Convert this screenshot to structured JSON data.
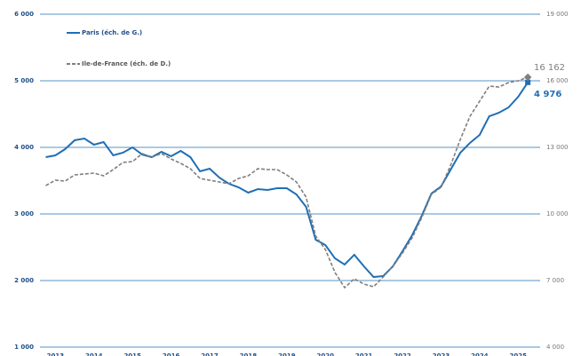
{
  "chart_data": {
    "type": "line",
    "x": [
      2012.75,
      2013,
      2013.25,
      2013.5,
      2013.75,
      2014,
      2014.25,
      2014.5,
      2014.75,
      2015,
      2015.25,
      2015.5,
      2015.75,
      2016,
      2016.25,
      2016.5,
      2016.75,
      2017,
      2017.25,
      2017.5,
      2017.75,
      2018,
      2018.25,
      2018.5,
      2018.75,
      2019,
      2019.25,
      2019.5,
      2019.75,
      2020,
      2020.25,
      2020.5,
      2020.75,
      2021,
      2021.25,
      2021.5,
      2021.75,
      2022,
      2022.25,
      2022.5,
      2022.75,
      2023,
      2023.25,
      2023.5,
      2023.75,
      2024,
      2024.25,
      2024.5,
      2024.75,
      2025,
      2025.25
    ],
    "xlim": [
      2012.6,
      2025.5
    ],
    "xticks": [
      2013,
      2014,
      2015,
      2016,
      2017,
      2018,
      2019,
      2020,
      2021,
      2022,
      2023,
      2024,
      2025
    ],
    "ylim": [
      1000,
      6000
    ],
    "yticks": [
      {
        "value": 1000,
        "label": "1 000"
      },
      {
        "value": 2000,
        "label": "2 000"
      },
      {
        "value": 3000,
        "label": "3 000"
      },
      {
        "value": 4000,
        "label": "4 000"
      },
      {
        "value": 5000,
        "label": "5 000"
      },
      {
        "value": 6000,
        "label": "6 000"
      }
    ],
    "y2lim": [
      4000,
      19000
    ],
    "y2ticks": [
      {
        "value": 4000,
        "label": "4 000"
      },
      {
        "value": 7000,
        "label": "7 000"
      },
      {
        "value": 10000,
        "label": "10 000"
      },
      {
        "value": 13000,
        "label": "13 000"
      },
      {
        "value": 16000,
        "label": "16 000"
      },
      {
        "value": 19000,
        "label": "19 000"
      }
    ],
    "grid": true,
    "series": [
      {
        "name": "Paris (éch. de G.)",
        "color": "#1f6fb5",
        "values": [
          3853,
          3880,
          3973,
          4107,
          4133,
          4040,
          4080,
          3880,
          3920,
          4000,
          3893,
          3853,
          3933,
          3867,
          3947,
          3853,
          3640,
          3680,
          3547,
          3453,
          3400,
          3320,
          3373,
          3360,
          3387,
          3387,
          3293,
          3107,
          2613,
          2533,
          2333,
          2240,
          2387,
          2213,
          2053,
          2067,
          2213,
          2440,
          2680,
          2973,
          3307,
          3413,
          3667,
          3920,
          4067,
          4187,
          4467,
          4520,
          4600,
          4760,
          4976
        ]
      },
      {
        "name": "Ile-de-France (éch. de D.)",
        "color": "#7f7f7f",
        "axis": "y2",
        "dashed": true,
        "values": [
          11280,
          11520,
          11480,
          11760,
          11800,
          11840,
          11720,
          12000,
          12320,
          12360,
          12720,
          12560,
          12720,
          12480,
          12280,
          12040,
          11600,
          11520,
          11440,
          11360,
          11600,
          11720,
          12040,
          12000,
          12000,
          11760,
          11440,
          10760,
          9000,
          8400,
          7360,
          6680,
          7080,
          6840,
          6720,
          7160,
          7640,
          8240,
          8920,
          9840,
          10880,
          11200,
          12200,
          13360,
          14400,
          15080,
          15760,
          15720,
          15920,
          16000,
          16162
        ]
      }
    ],
    "annotations": [
      {
        "text": "16 162",
        "series": 1
      },
      {
        "text": "4 976",
        "series": 0
      }
    ]
  }
}
